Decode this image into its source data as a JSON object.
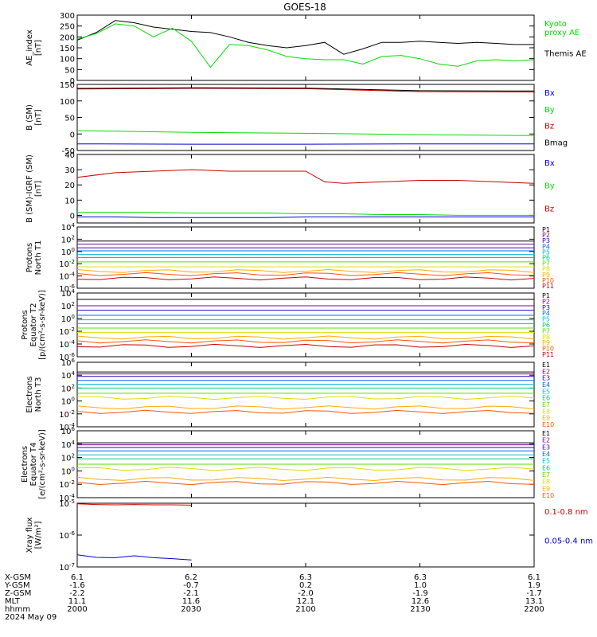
{
  "title": "GOES-18",
  "colors": {
    "black": "#000000",
    "green": "#00dd00",
    "blue": "#0000cc",
    "red": "#cc0000",
    "palette11": [
      "#000000",
      "#7a0099",
      "#3300cc",
      "#0066ff",
      "#00bbdd",
      "#00cc88",
      "#55dd00",
      "#dddd00",
      "#ffaa00",
      "#ff5500",
      "#cc0000"
    ]
  },
  "x_axis": {
    "rows": [
      {
        "label": "X-GSM",
        "values": [
          "6.1",
          "6.2",
          "6.3",
          "6.3",
          "6.1"
        ]
      },
      {
        "label": "Y-GSM",
        "values": [
          "-1.6",
          "-0.7",
          "0.2",
          "1.0",
          "1.9"
        ]
      },
      {
        "label": "Z-GSM",
        "values": [
          "-2.2",
          "-2.1",
          "-2.0",
          "-1.9",
          "-1.7"
        ]
      },
      {
        "label": "MLT",
        "values": [
          "11.1",
          "11.6",
          "12.1",
          "12.6",
          "13.1"
        ]
      },
      {
        "label": "hhmm",
        "values": [
          "2000",
          "2030",
          "2100",
          "2130",
          "2200"
        ]
      }
    ],
    "date": "2024 May 09"
  },
  "chart_data": [
    {
      "type": "line",
      "ylabel": "AE_index\n[nT]",
      "ylim": [
        0,
        300
      ],
      "yticks": [
        "300",
        "250",
        "200",
        "150",
        "100",
        "50",
        "0"
      ],
      "legend": [
        {
          "text": "Kyoto\nproxy AE",
          "color": "green"
        },
        {
          "text": "Themis AE",
          "color": "black"
        }
      ],
      "x": [
        2000,
        2005,
        2010,
        2015,
        2020,
        2025,
        2030,
        2035,
        2040,
        2045,
        2050,
        2055,
        2100,
        2105,
        2110,
        2115,
        2120,
        2125,
        2130,
        2135,
        2140,
        2145,
        2150,
        2155,
        2200
      ],
      "series": [
        {
          "name": "Themis AE",
          "color": "black",
          "values": [
            185,
            220,
            275,
            265,
            245,
            235,
            225,
            220,
            200,
            175,
            160,
            150,
            160,
            175,
            120,
            145,
            175,
            175,
            180,
            175,
            170,
            175,
            170,
            165,
            165
          ]
        },
        {
          "name": "Kyoto proxy AE",
          "color": "green",
          "values": [
            190,
            215,
            260,
            250,
            200,
            240,
            180,
            60,
            165,
            160,
            140,
            110,
            100,
            95,
            95,
            75,
            110,
            115,
            100,
            75,
            65,
            90,
            95,
            90,
            95
          ]
        }
      ]
    },
    {
      "type": "line",
      "ylabel": "B (SM)\n[nT]",
      "ylim": [
        -50,
        150
      ],
      "yticks": [
        "150",
        "100",
        "50",
        "0",
        "-50"
      ],
      "legend": [
        {
          "text": "Bx",
          "color": "blue"
        },
        {
          "text": "By",
          "color": "green"
        },
        {
          "text": "Bz",
          "color": "red"
        },
        {
          "text": "Bmag",
          "color": "black"
        }
      ],
      "x": [
        2000,
        2030,
        2100,
        2130,
        2200
      ],
      "series": [
        {
          "name": "Bx",
          "color": "blue",
          "values": [
            -30,
            -31,
            -31,
            -30,
            -30
          ]
        },
        {
          "name": "By",
          "color": "green",
          "values": [
            10,
            5,
            2,
            -2,
            -5
          ]
        },
        {
          "name": "Bz",
          "color": "red",
          "values": [
            136,
            138,
            137,
            128,
            127
          ]
        },
        {
          "name": "Bmag",
          "color": "black",
          "values": [
            138,
            140,
            139,
            131,
            130
          ]
        }
      ]
    },
    {
      "type": "line",
      "ylabel": "B (SM)-IGRF (SM)\n[nT]",
      "ylim": [
        -5,
        40
      ],
      "yticks": [
        "40",
        "30",
        "20",
        "10",
        "0"
      ],
      "legend": [
        {
          "text": "Bx",
          "color": "blue"
        },
        {
          "text": "By",
          "color": "green"
        },
        {
          "text": "Bz",
          "color": "red"
        }
      ],
      "x": [
        2000,
        2010,
        2020,
        2030,
        2040,
        2050,
        2100,
        2105,
        2110,
        2120,
        2130,
        2140,
        2150,
        2200
      ],
      "series": [
        {
          "name": "Bx",
          "color": "blue",
          "values": [
            -1,
            -1,
            -1.5,
            -1.5,
            -1.5,
            -1.5,
            -1,
            -1,
            -1,
            -1,
            -1,
            -1,
            -1,
            -1
          ]
        },
        {
          "name": "By",
          "color": "green",
          "values": [
            2,
            2,
            2,
            1.5,
            1.5,
            1.5,
            1,
            1,
            1,
            0.5,
            0.5,
            0,
            0,
            0
          ]
        },
        {
          "name": "Bz",
          "color": "red",
          "values": [
            25,
            28,
            29,
            30,
            29,
            29,
            29,
            22,
            21,
            22,
            23,
            23,
            22,
            21
          ]
        }
      ]
    },
    {
      "type": "line",
      "ylabel": "Protons\nNorth T1",
      "ylim_exp": [
        -6,
        4
      ],
      "yticks": [
        "10^4",
        "10^2",
        "10^0",
        "10^-2",
        "10^-4",
        "10^-6"
      ],
      "legend": [
        {
          "text": "P1"
        },
        {
          "text": "P2"
        },
        {
          "text": "P3"
        },
        {
          "text": "P4"
        },
        {
          "text": "P5"
        },
        {
          "text": "P6"
        },
        {
          "text": "P7"
        },
        {
          "text": "P8"
        },
        {
          "text": "P9"
        },
        {
          "text": "P10"
        },
        {
          "text": "P11"
        }
      ],
      "log_levels": [
        1.7,
        1.2,
        0.6,
        0.1,
        -0.5,
        -1.0,
        -1.7,
        -2.5,
        -3.2,
        -3.7,
        -4.4
      ]
    },
    {
      "type": "line",
      "ylabel": "Protons\nEquator T2\n[p/(cm²-s-sr-keV)]",
      "ylim_exp": [
        -6,
        4
      ],
      "yticks": [
        "10^4",
        "10^2",
        "10^0",
        "10^-2",
        "10^-4",
        "10^-6"
      ],
      "legend": [
        {
          "text": "P1"
        },
        {
          "text": "P2"
        },
        {
          "text": "P3"
        },
        {
          "text": "P4"
        },
        {
          "text": "P5"
        },
        {
          "text": "P6"
        },
        {
          "text": "P7"
        },
        {
          "text": "P8"
        },
        {
          "text": "P9"
        },
        {
          "text": "P10"
        },
        {
          "text": "P11"
        }
      ],
      "log_levels": [
        3.0,
        2.0,
        1.3,
        0.5,
        -0.2,
        -0.8,
        -1.5,
        -2.2,
        -3.0,
        -3.6,
        -4.3
      ]
    },
    {
      "type": "line",
      "ylabel": "Electrons\nNorth T3",
      "ylim_exp": [
        -4,
        6
      ],
      "yticks": [
        "10^6",
        "10^4",
        "10^2",
        "10^0",
        "10^-2",
        "10^-4"
      ],
      "legend": [
        {
          "text": "E1"
        },
        {
          "text": "E2"
        },
        {
          "text": "E3"
        },
        {
          "text": "E4"
        },
        {
          "text": "E5"
        },
        {
          "text": "E6"
        },
        {
          "text": "E7"
        },
        {
          "text": "E8"
        },
        {
          "text": "E9"
        },
        {
          "text": "E10"
        }
      ],
      "log_levels": [
        4.5,
        4.2,
        3.8,
        3.2,
        2.6,
        2.0,
        1.2,
        0.5,
        -1.0,
        -1.7
      ]
    },
    {
      "type": "line",
      "ylabel": "Electrons\nEquator T4\n[e/(cm²-s-sr-keV)]",
      "ylim_exp": [
        -4,
        6
      ],
      "yticks": [
        "10^6",
        "10^4",
        "10^2",
        "10^0",
        "10^-2",
        "10^-4"
      ],
      "legend": [
        {
          "text": "E1"
        },
        {
          "text": "E2"
        },
        {
          "text": "E3"
        },
        {
          "text": "E4"
        },
        {
          "text": "E5"
        },
        {
          "text": "E6"
        },
        {
          "text": "E7"
        },
        {
          "text": "E8"
        },
        {
          "text": "E9"
        },
        {
          "text": "E10"
        }
      ],
      "log_levels": [
        4.2,
        3.9,
        3.5,
        3.0,
        2.4,
        1.8,
        1.0,
        0.3,
        -1.2,
        -1.8
      ]
    },
    {
      "type": "line",
      "ylabel": "Xray flux\n[W/m²]",
      "ylim_exp": [
        -7,
        -5
      ],
      "yticks": [
        "10^-5",
        "10^-6",
        "10^-7"
      ],
      "legend": [
        {
          "text": "0.1-0.8 nm",
          "color": "red"
        },
        {
          "text": "0.05-0.4 nm",
          "color": "blue"
        }
      ],
      "x": [
        2000,
        2005,
        2010,
        2015,
        2020,
        2025,
        2030
      ],
      "series": [
        {
          "name": "0.1-0.8 nm",
          "color": "red",
          "log_values": [
            -5.02,
            -5.04,
            -5.05,
            -5.04,
            -5.05,
            -5.05,
            -5.06
          ]
        },
        {
          "name": "0.05-0.4 nm",
          "color": "blue",
          "log_values": [
            -6.62,
            -6.7,
            -6.71,
            -6.65,
            -6.71,
            -6.74,
            -6.78
          ]
        }
      ]
    }
  ]
}
